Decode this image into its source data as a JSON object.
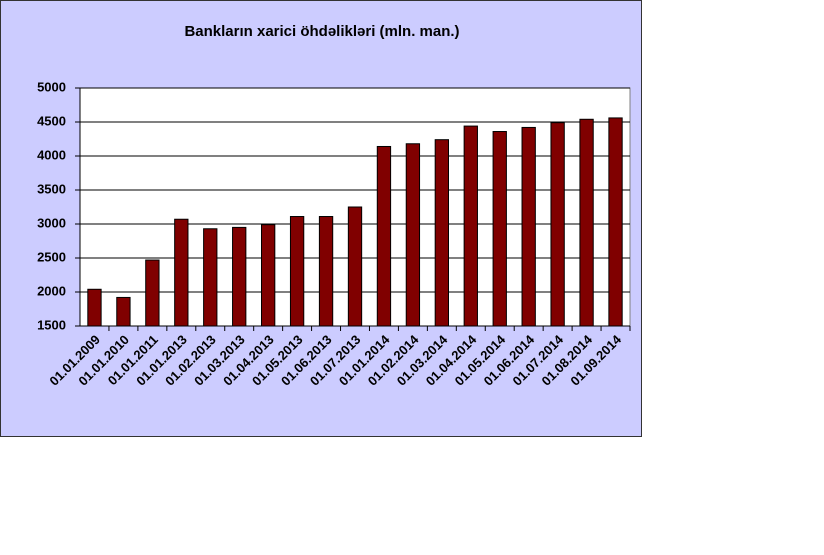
{
  "chart_data": {
    "type": "bar",
    "title": "Bankların xarici öhdəlikləri (mln. man.)",
    "categories": [
      "01.01.2009",
      "01.01.2010",
      "01.01.2011",
      "01.01.2013",
      "01.02.2013",
      "01.03.2013",
      "01.04.2013",
      "01.05.2013",
      "01.06.2013",
      "01.07.2013",
      "01.01.2014",
      "01.02.2014",
      "01.03.2014",
      "01.04.2014",
      "01.05.2014",
      "01.06.2014",
      "01.07.2014",
      "01.08.2014",
      "01.09.2014"
    ],
    "values": [
      2040,
      1920,
      2470,
      3070,
      2930,
      2950,
      2990,
      3110,
      3110,
      3250,
      4140,
      4180,
      4240,
      4440,
      4360,
      4420,
      4490,
      4540,
      4560
    ],
    "color": "#800000",
    "ylim": [
      1500,
      5000
    ],
    "yticks": [
      1500,
      2000,
      2500,
      3000,
      3500,
      4000,
      4500,
      5000
    ],
    "grid": true
  }
}
